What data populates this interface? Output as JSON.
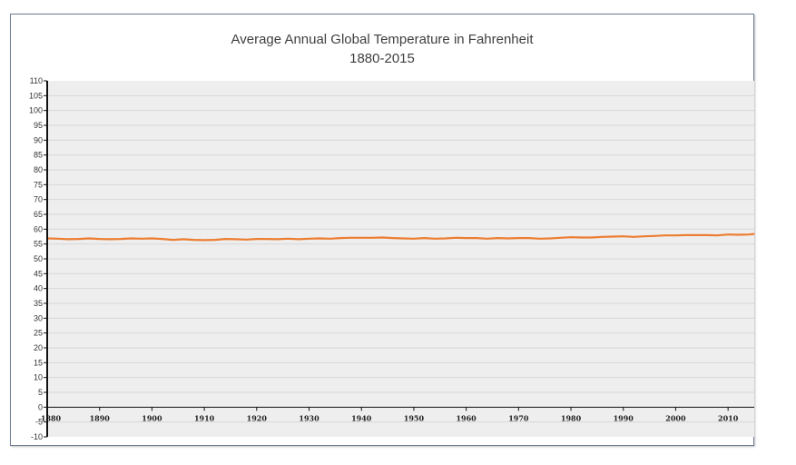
{
  "chart_data": {
    "type": "line",
    "title": "Average Annual Global Temperature in Fahrenheit",
    "subtitle": "1880-2015",
    "xlabel": "",
    "ylabel": "",
    "xlim": [
      1880,
      2015
    ],
    "ylim": [
      -10,
      110
    ],
    "y_ticks": [
      "-10",
      "-5",
      "0",
      "5",
      "10",
      "15",
      "20",
      "25",
      "30",
      "35",
      "40",
      "45",
      "50",
      "55",
      "60",
      "65",
      "70",
      "75",
      "80",
      "85",
      "90",
      "95",
      "100",
      "105",
      "110"
    ],
    "x_ticks": [
      "1880",
      "1890",
      "1900",
      "1910",
      "1920",
      "1930",
      "1940",
      "1950",
      "1960",
      "1970",
      "1980",
      "1990",
      "2000",
      "2010"
    ],
    "grid": true,
    "legend": "none",
    "series": [
      {
        "color": "#ed7d31",
        "x": [
          1880,
          1882,
          1884,
          1886,
          1888,
          1890,
          1892,
          1894,
          1896,
          1898,
          1900,
          1902,
          1904,
          1906,
          1908,
          1910,
          1912,
          1914,
          1916,
          1918,
          1920,
          1922,
          1924,
          1926,
          1928,
          1930,
          1932,
          1934,
          1936,
          1938,
          1940,
          1942,
          1944,
          1946,
          1948,
          1950,
          1952,
          1954,
          1956,
          1958,
          1960,
          1962,
          1964,
          1966,
          1968,
          1970,
          1972,
          1974,
          1976,
          1978,
          1980,
          1982,
          1984,
          1986,
          1988,
          1990,
          1992,
          1994,
          1996,
          1998,
          2000,
          2002,
          2004,
          2006,
          2008,
          2010,
          2012,
          2014,
          2015
        ],
        "values": [
          56.9,
          56.8,
          56.6,
          56.7,
          56.9,
          56.7,
          56.6,
          56.7,
          56.9,
          56.8,
          56.9,
          56.7,
          56.4,
          56.6,
          56.4,
          56.3,
          56.4,
          56.7,
          56.6,
          56.5,
          56.7,
          56.7,
          56.6,
          56.8,
          56.6,
          56.8,
          56.9,
          56.8,
          57.0,
          57.1,
          57.1,
          57.1,
          57.2,
          57.0,
          56.9,
          56.8,
          57.0,
          56.8,
          56.9,
          57.1,
          57.0,
          57.0,
          56.8,
          57.0,
          56.9,
          57.0,
          57.0,
          56.8,
          56.9,
          57.1,
          57.3,
          57.2,
          57.2,
          57.4,
          57.5,
          57.6,
          57.4,
          57.6,
          57.7,
          57.9,
          57.9,
          58.0,
          58.0,
          58.0,
          57.9,
          58.2,
          58.1,
          58.2,
          58.4
        ]
      }
    ]
  },
  "colors": {
    "plot_background": "#eeeeee",
    "gridline": "#d7d7d7",
    "axis": "#111111",
    "frame_border": "#6f7d93",
    "series": "#ed7d31"
  }
}
